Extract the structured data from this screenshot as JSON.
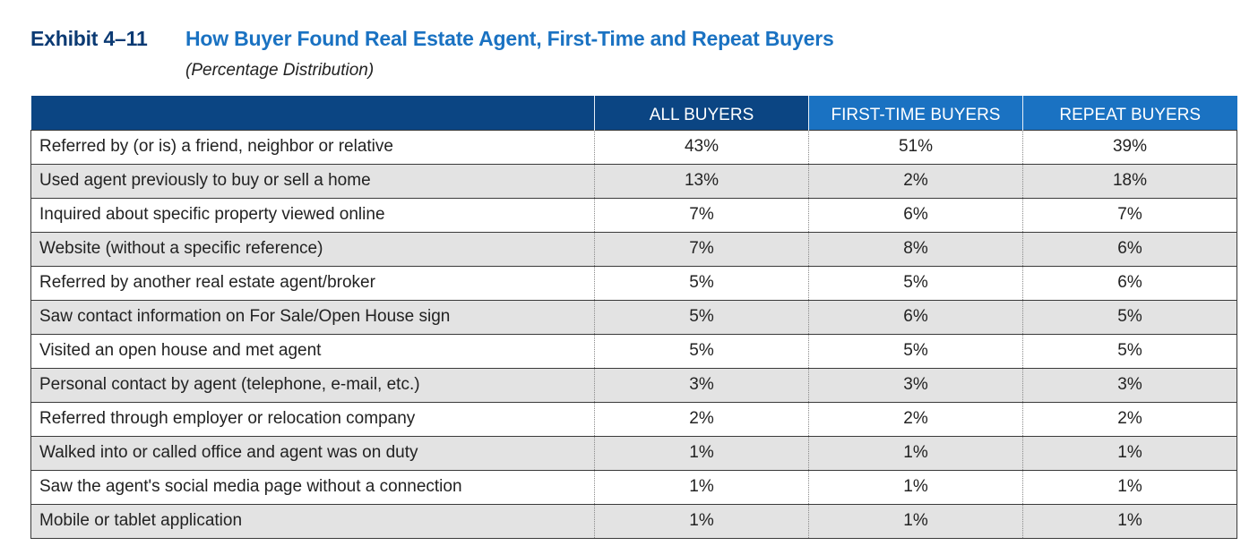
{
  "header": {
    "exhibit": "Exhibit 4–11",
    "title": "How Buyer Found Real Estate Agent, First-Time and Repeat Buyers",
    "subtitle": "(Percentage Distribution)"
  },
  "table": {
    "columns": [
      "",
      "ALL BUYERS",
      "FIRST-TIME BUYERS",
      "REPEAT BUYERS"
    ],
    "rows": [
      {
        "label": "Referred by (or is) a friend, neighbor or relative",
        "all": "43%",
        "first": "51%",
        "repeat": "39%"
      },
      {
        "label": "Used agent previously to buy or sell a home",
        "all": "13%",
        "first": "2%",
        "repeat": "18%"
      },
      {
        "label": "Inquired about specific property viewed online",
        "all": "7%",
        "first": "6%",
        "repeat": "7%"
      },
      {
        "label": "Website (without a specific reference)",
        "all": "7%",
        "first": "8%",
        "repeat": "6%"
      },
      {
        "label": "Referred by another real estate agent/broker",
        "all": "5%",
        "first": "5%",
        "repeat": "6%"
      },
      {
        "label": "Saw contact information on For Sale/Open House sign",
        "all": "5%",
        "first": "6%",
        "repeat": "5%"
      },
      {
        "label": "Visited an open house and met agent",
        "all": "5%",
        "first": "5%",
        "repeat": "5%"
      },
      {
        "label": "Personal contact by agent (telephone, e-mail, etc.)",
        "all": "3%",
        "first": "3%",
        "repeat": "3%"
      },
      {
        "label": "Referred through employer or relocation company",
        "all": "2%",
        "first": "2%",
        "repeat": "2%"
      },
      {
        "label": "Walked into or called office and agent was on duty",
        "all": "1%",
        "first": "1%",
        "repeat": "1%"
      },
      {
        "label": "Saw the agent's social media page without a connection",
        "all": "1%",
        "first": "1%",
        "repeat": "1%"
      },
      {
        "label": "Mobile or tablet application",
        "all": "1%",
        "first": "1%",
        "repeat": "1%"
      }
    ]
  },
  "colors": {
    "header_dark": "#0b4583",
    "header_light": "#1a72c2",
    "title_dark": "#0b3a73",
    "title_blue": "#1a72c2",
    "row_shade": "#e3e3e3"
  }
}
